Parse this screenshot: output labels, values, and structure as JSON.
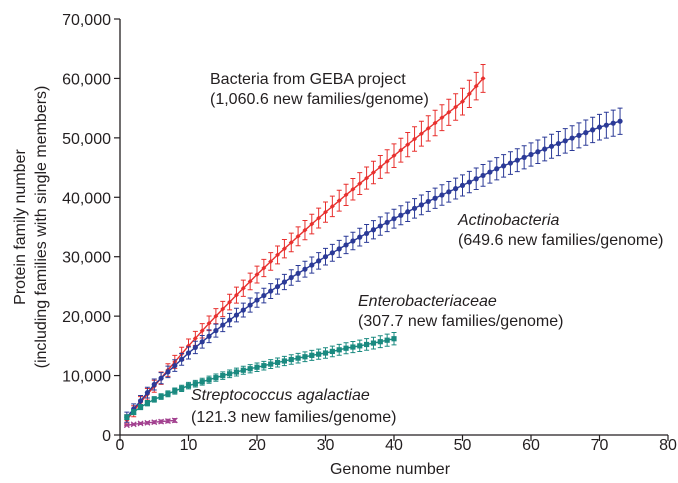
{
  "chart_data": {
    "type": "line",
    "xlabel": "Genome number",
    "ylabel_line1": "Protein family number",
    "ylabel_line2": "(including families with single members)",
    "xlim": [
      0,
      80
    ],
    "ylim": [
      0,
      70000
    ],
    "x_ticks": [
      "0",
      "10",
      "20",
      "30",
      "40",
      "50",
      "60",
      "70",
      "80"
    ],
    "y_ticks": [
      "0",
      "10,000",
      "20,000",
      "30,000",
      "40,000",
      "50,000",
      "60,000",
      "70,000"
    ],
    "grid": false,
    "series": [
      {
        "name": "Bacteria from GEBA project",
        "note": "(1,060.6 new families/genome)",
        "color": "#e8302e",
        "marker": "diamond",
        "x_start": 1,
        "x_end": 53,
        "x": [
          1,
          3,
          5,
          8,
          10,
          13,
          15,
          18,
          20,
          23,
          25,
          28,
          30,
          33,
          35,
          38,
          40,
          43,
          45,
          48,
          50,
          53
        ],
        "y": [
          2500,
          5500,
          8200,
          12300,
          15000,
          18800,
          21200,
          24700,
          27000,
          30300,
          32400,
          35500,
          37500,
          40400,
          42300,
          45100,
          47000,
          49800,
          51600,
          54300,
          56100,
          60000
        ],
        "error": 1800
      },
      {
        "name": "Actinobacteria",
        "note": "(649.6 new families/genome)",
        "color": "#2b3a97",
        "marker": "circle",
        "x_start": 1,
        "x_end": 73,
        "x": [
          1,
          5,
          10,
          15,
          20,
          25,
          30,
          35,
          40,
          45,
          50,
          55,
          60,
          65,
          70,
          73
        ],
        "y": [
          3000,
          8500,
          13800,
          18500,
          22700,
          26500,
          30000,
          33300,
          36400,
          39300,
          42000,
          44800,
          47200,
          49500,
          51800,
          52800
        ],
        "error": 1700
      },
      {
        "name": "Enterobacteriaceae",
        "note": "(307.7 new families/genome)",
        "color": "#1a8a80",
        "marker": "square",
        "x_start": 1,
        "x_end": 40,
        "x": [
          1,
          3,
          5,
          8,
          10,
          13,
          15,
          18,
          20,
          23,
          25,
          28,
          30,
          33,
          35,
          38,
          40
        ],
        "y": [
          3000,
          4700,
          6000,
          7400,
          8300,
          9300,
          10000,
          10900,
          11400,
          12200,
          12700,
          13400,
          13800,
          14600,
          15000,
          15700,
          16200
        ],
        "error": 800
      },
      {
        "name": "Streptococcus agalactiae",
        "note": "(121.3 new families/genome)",
        "color": "#a2408f",
        "marker": "x",
        "x_start": 1,
        "x_end": 8,
        "x": [
          1,
          2,
          3,
          4,
          5,
          6,
          7,
          8
        ],
        "y": [
          1650,
          1800,
          1950,
          2050,
          2150,
          2250,
          2350,
          2450
        ],
        "error": 250
      }
    ]
  }
}
